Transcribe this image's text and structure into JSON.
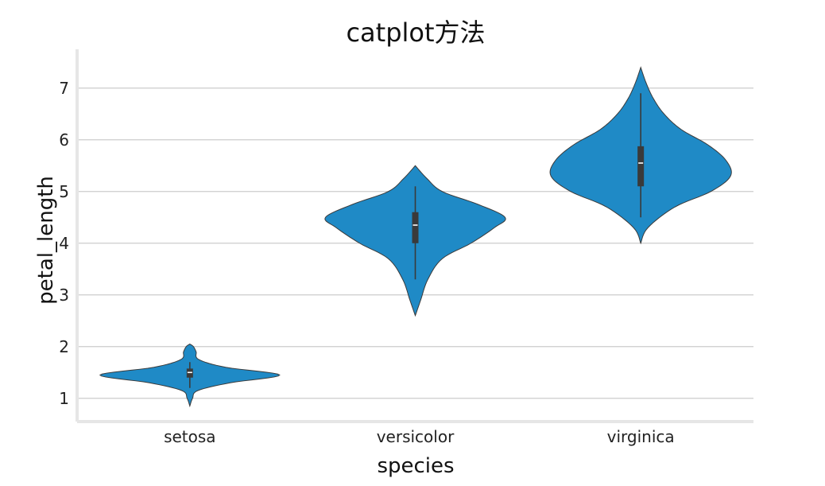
{
  "chart_data": {
    "type": "violin",
    "title": "catplot方法",
    "xlabel": "species",
    "ylabel": "petal_length",
    "categories": [
      "setosa",
      "versicolor",
      "virginica"
    ],
    "yticks": [
      1,
      2,
      3,
      4,
      5,
      6,
      7
    ],
    "ylim": [
      0.55,
      7.75
    ],
    "grid": "horizontal",
    "color": "#1f8ac6",
    "violins": [
      {
        "category": "setosa",
        "min": 0.85,
        "max": 2.05,
        "q1": 1.4,
        "median": 1.5,
        "q3": 1.575,
        "whisker_low": 1.2,
        "whisker_high": 1.7,
        "profile": [
          [
            0.85,
            0.0
          ],
          [
            1.0,
            0.03
          ],
          [
            1.15,
            0.09
          ],
          [
            1.3,
            0.45
          ],
          [
            1.45,
            1.0
          ],
          [
            1.6,
            0.4
          ],
          [
            1.75,
            0.1
          ],
          [
            1.9,
            0.07
          ],
          [
            2.0,
            0.04
          ],
          [
            2.05,
            0.0
          ]
        ]
      },
      {
        "category": "versicolor",
        "min": 2.6,
        "max": 5.5,
        "q1": 4.0,
        "median": 4.35,
        "q3": 4.6,
        "whisker_low": 3.3,
        "whisker_high": 5.1,
        "profile": [
          [
            2.6,
            0.0
          ],
          [
            2.9,
            0.06
          ],
          [
            3.3,
            0.14
          ],
          [
            3.7,
            0.3
          ],
          [
            4.0,
            0.62
          ],
          [
            4.3,
            0.88
          ],
          [
            4.5,
            1.0
          ],
          [
            4.75,
            0.7
          ],
          [
            5.0,
            0.3
          ],
          [
            5.25,
            0.13
          ],
          [
            5.5,
            0.0
          ]
        ]
      },
      {
        "category": "virginica",
        "min": 4.0,
        "max": 7.4,
        "q1": 5.1,
        "median": 5.55,
        "q3": 5.875,
        "whisker_low": 4.5,
        "whisker_high": 6.9,
        "profile": [
          [
            4.0,
            0.0
          ],
          [
            4.3,
            0.08
          ],
          [
            4.7,
            0.38
          ],
          [
            5.0,
            0.78
          ],
          [
            5.3,
            1.0
          ],
          [
            5.6,
            0.95
          ],
          [
            5.9,
            0.75
          ],
          [
            6.2,
            0.45
          ],
          [
            6.5,
            0.26
          ],
          [
            6.8,
            0.14
          ],
          [
            7.1,
            0.06
          ],
          [
            7.4,
            0.0
          ]
        ]
      }
    ]
  }
}
